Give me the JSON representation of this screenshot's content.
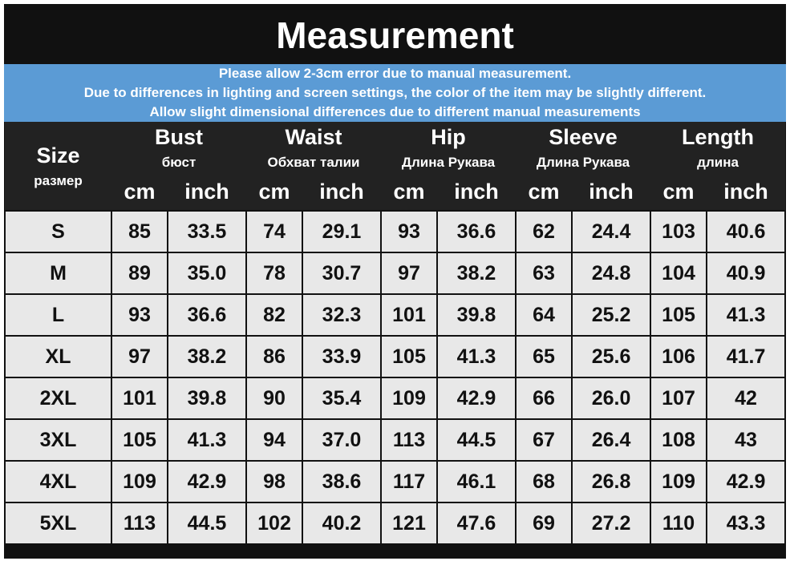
{
  "header": {
    "title": "Measurement"
  },
  "notes": [
    "Please allow 2-3cm error due to manual measurement.",
    "Due to differences in lighting and screen settings, the color of the item may be slightly different.",
    "Allow slight dimensional differences due to different manual measurements"
  ],
  "table": {
    "size_header": {
      "name": "Size",
      "sub": "размер"
    },
    "columns": [
      {
        "name": "Bust",
        "sub": "бюст",
        "units": [
          "cm",
          "inch"
        ]
      },
      {
        "name": "Waist",
        "sub": "Обхват талии",
        "units": [
          "cm",
          "inch"
        ]
      },
      {
        "name": "Hip",
        "sub": "Длина Рукава",
        "units": [
          "cm",
          "inch"
        ]
      },
      {
        "name": "Sleeve",
        "sub": "Длина Рукава",
        "units": [
          "cm",
          "inch"
        ]
      },
      {
        "name": "Length",
        "sub": "длина",
        "units": [
          "cm",
          "inch"
        ]
      }
    ],
    "rows": [
      [
        "S",
        "85",
        "33.5",
        "74",
        "29.1",
        "93",
        "36.6",
        "62",
        "24.4",
        "103",
        "40.6"
      ],
      [
        "M",
        "89",
        "35.0",
        "78",
        "30.7",
        "97",
        "38.2",
        "63",
        "24.8",
        "104",
        "40.9"
      ],
      [
        "L",
        "93",
        "36.6",
        "82",
        "32.3",
        "101",
        "39.8",
        "64",
        "25.2",
        "105",
        "41.3"
      ],
      [
        "XL",
        "97",
        "38.2",
        "86",
        "33.9",
        "105",
        "41.3",
        "65",
        "25.6",
        "106",
        "41.7"
      ],
      [
        "2XL",
        "101",
        "39.8",
        "90",
        "35.4",
        "109",
        "42.9",
        "66",
        "26.0",
        "107",
        "42"
      ],
      [
        "3XL",
        "105",
        "41.3",
        "94",
        "37.0",
        "113",
        "44.5",
        "67",
        "26.4",
        "108",
        "43"
      ],
      [
        "4XL",
        "109",
        "42.9",
        "98",
        "38.6",
        "117",
        "46.1",
        "68",
        "26.8",
        "109",
        "42.9"
      ],
      [
        "5XL",
        "113",
        "44.5",
        "102",
        "40.2",
        "121",
        "47.6",
        "69",
        "27.2",
        "110",
        "43.3"
      ]
    ]
  }
}
